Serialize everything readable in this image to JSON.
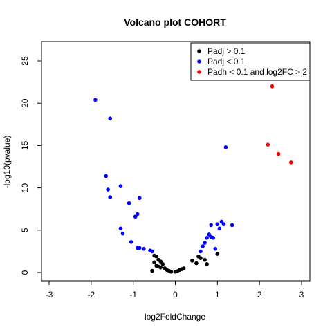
{
  "chart_data": {
    "type": "scatter",
    "title": "Volcano plot COHORT",
    "xlabel": "log2FoldChange",
    "ylabel": "-log10(pvalue)",
    "xlim": [
      -3,
      3
    ],
    "ylim": [
      0,
      25
    ],
    "xticks": [
      -3,
      -2,
      -1,
      0,
      1,
      2,
      3
    ],
    "yticks": [
      0,
      5,
      10,
      15,
      20,
      25
    ],
    "grid": false,
    "legend_position": "top-right",
    "series": [
      {
        "name": "Padj > 0.1",
        "color": "#000000",
        "x": [
          -0.5,
          -0.45,
          -0.4,
          -0.5,
          -0.35,
          -0.3,
          -0.45,
          -0.4,
          -0.35,
          -0.25,
          -0.2,
          -0.15,
          -0.1,
          0.0,
          0.05,
          0.1,
          0.15,
          0.2,
          -0.55,
          0.4,
          0.5,
          0.55,
          0.6,
          0.7,
          0.75,
          1.0
        ],
        "y": [
          2.0,
          1.9,
          1.5,
          1.2,
          1.3,
          1.0,
          0.8,
          0.7,
          0.6,
          0.5,
          0.3,
          0.2,
          0.1,
          0.1,
          0.15,
          0.3,
          0.4,
          0.5,
          0.2,
          1.4,
          1.1,
          1.9,
          1.7,
          1.5,
          1.0,
          2.2
        ]
      },
      {
        "name": "Padj < 0.1",
        "color": "#0000ff",
        "x": [
          -1.9,
          -1.55,
          -1.65,
          -1.6,
          -1.55,
          -1.3,
          -1.1,
          -0.85,
          -0.95,
          -0.9,
          -1.3,
          -1.25,
          -1.05,
          -0.9,
          -0.85,
          -0.75,
          -0.6,
          -0.55,
          1.2,
          0.6,
          0.65,
          0.7,
          0.75,
          0.8,
          0.85,
          0.9,
          0.95,
          1.0,
          1.05,
          1.1,
          1.15,
          1.35,
          0.85
        ],
        "y": [
          20.4,
          18.2,
          11.4,
          9.8,
          8.9,
          10.2,
          8.2,
          8.8,
          6.6,
          6.9,
          5.2,
          4.6,
          3.6,
          2.9,
          2.9,
          2.8,
          2.6,
          2.5,
          14.8,
          2.5,
          3.1,
          3.5,
          4.1,
          4.5,
          5.6,
          4.1,
          2.8,
          5.7,
          5.2,
          6.0,
          5.7,
          5.6,
          4.2
        ]
      },
      {
        "name": "Padh < 0.1 and log2FC > 2",
        "color": "#ff0000",
        "x": [
          2.3,
          2.2,
          2.45,
          2.75
        ],
        "y": [
          22.0,
          15.1,
          14.0,
          13.0
        ]
      }
    ]
  }
}
